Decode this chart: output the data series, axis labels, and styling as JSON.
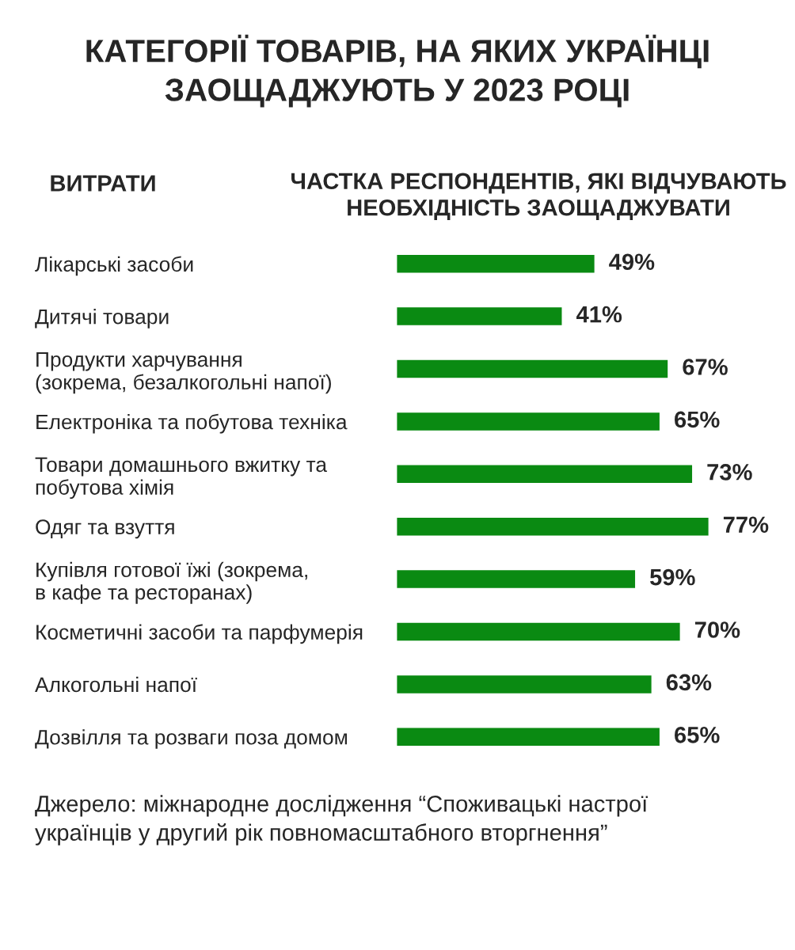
{
  "chart_data": {
    "type": "bar",
    "orientation": "horizontal",
    "title": "КАТЕГОРІЇ ТОВАРІВ, НА ЯКИХ УКРАЇНЦІ\nЗАОЩАДЖУЮТЬ У 2023 РОЦІ",
    "ylabel": "ВИТРАТИ",
    "xlabel": "ЧАСТКА РЕСПОНДЕНТІВ, ЯКІ ВІДЧУВАЮТЬ\nНЕОБХІДНІСТЬ ЗАОЩАДЖУВАТИ",
    "categories": [
      "Лікарські засоби",
      "Дитячі товари",
      "Продукти харчування\n(зокрема, безалкогольні напої)",
      "Електроніка та побутова техніка",
      "Товари домашнього вжитку та\nпобутова хімія",
      "Одяг та взуття",
      "Купівля готової їжі (зокрема,\nв кафе та ресторанах)",
      "Косметичні засоби та парфумерія",
      "Алкогольні напої",
      "Дозвілля та розваги поза домом"
    ],
    "values": [
      49,
      41,
      67,
      65,
      73,
      77,
      59,
      70,
      63,
      65
    ],
    "value_labels": [
      "49%",
      "41%",
      "67%",
      "65%",
      "73%",
      "77%",
      "59%",
      "70%",
      "63%",
      "65%"
    ],
    "color": "#0a8a12",
    "grid": false,
    "legend": false,
    "annotations": [
      "Джерело: міжнародне дослідження “Споживацькі настрої\nукраїнців у другий рік повномасштабного вторгнення”"
    ]
  }
}
